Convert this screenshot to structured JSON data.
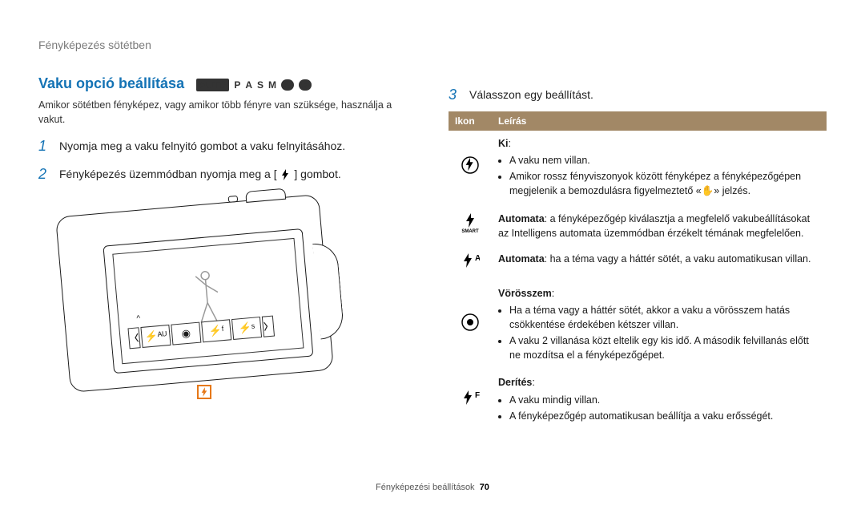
{
  "header": "Fényképezés sötétben",
  "footer": {
    "label": "Fényképezési beállítások",
    "page": "70"
  },
  "left": {
    "title": "Vaku opció beállítása",
    "mode_labels": [
      "AUTO",
      "P",
      "A",
      "S",
      "M",
      "S",
      "✿"
    ],
    "intro": "Amikor sötétben fényképez, vagy amikor több fényre van szüksége, használja a vakut.",
    "step1": "Nyomja meg a vaku felnyitó gombot a vaku felnyitásához.",
    "step2a": "Fényképezés üzemmódban nyomja meg a [",
    "step2b": "] gombot.",
    "strip_arrows": [
      "〈",
      "〉"
    ],
    "strip_cells": [
      "⚡ᴬᵁ",
      "◉",
      "⚡ᶠ",
      "⚡ˢ"
    ]
  },
  "right": {
    "step3": "Válasszon egy beállítást.",
    "th_icon": "Ikon",
    "th_desc": "Leírás",
    "rows": [
      {
        "icon": "circle-flash",
        "title": "Ki",
        "title_suffix": ":",
        "bullets": [
          "A vaku nem villan.",
          "Amikor rossz fényviszonyok között fényképez a fényképezőgépen megjelenik a bemozdulásra figyelmeztető «✋» jelzés."
        ]
      },
      {
        "icon": "flash-smart",
        "plain": "Automata: a fényképezőgép kiválasztja a megfelelő vakubeállításokat az Intelligens automata üzemmódban érzékelt témának megfelelően.",
        "bold_lead": "Automata"
      },
      {
        "icon": "flash-a",
        "plain": "Automata: ha a téma vagy a háttér sötét, a vaku automatikusan villan.",
        "bold_lead": "Automata"
      },
      {
        "icon": "circle-eye",
        "title": "Vörösszem",
        "title_suffix": ":",
        "bullets": [
          "Ha a téma vagy a háttér sötét, akkor a vaku a vörösszem hatás csökkentése érdekében kétszer villan.",
          "A vaku 2 villanása közt eltelik egy kis idő. A második felvillanás előtt ne mozdítsa el a fényképezőgépet."
        ]
      },
      {
        "icon": "flash-f",
        "title": "Derítés",
        "title_suffix": ":",
        "bullets": [
          "A vaku mindig villan.",
          "A fényképezőgép automatikusan beállítja a vaku erősségét."
        ]
      }
    ]
  }
}
